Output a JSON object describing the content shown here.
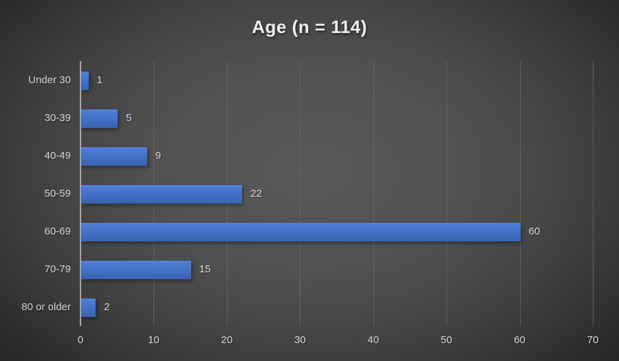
{
  "chart_data": {
    "type": "bar",
    "orientation": "horizontal",
    "title": "Age (n = 114)",
    "categories": [
      "Under 30",
      "30-39",
      "40-49",
      "50-59",
      "60-69",
      "70-79",
      "80 or older"
    ],
    "values": [
      1,
      5,
      9,
      22,
      60,
      15,
      2
    ],
    "data_labels": [
      1,
      5,
      9,
      22,
      60,
      15,
      2
    ],
    "xlabel": "",
    "ylabel": "",
    "xlim": [
      0,
      70
    ],
    "xticks": [
      0,
      10,
      20,
      30,
      40,
      50,
      60,
      70
    ],
    "grid": true,
    "legend": false
  },
  "colors": {
    "background_center": "#595959",
    "background_edge": "#262626",
    "bar_top": "#5080d8",
    "bar_bottom": "#3a62b2",
    "grid_line": "#6b6b6b",
    "axis_line": "#ababab",
    "label_text": "#d9d9d9",
    "title_text": "#f0f0f0"
  }
}
